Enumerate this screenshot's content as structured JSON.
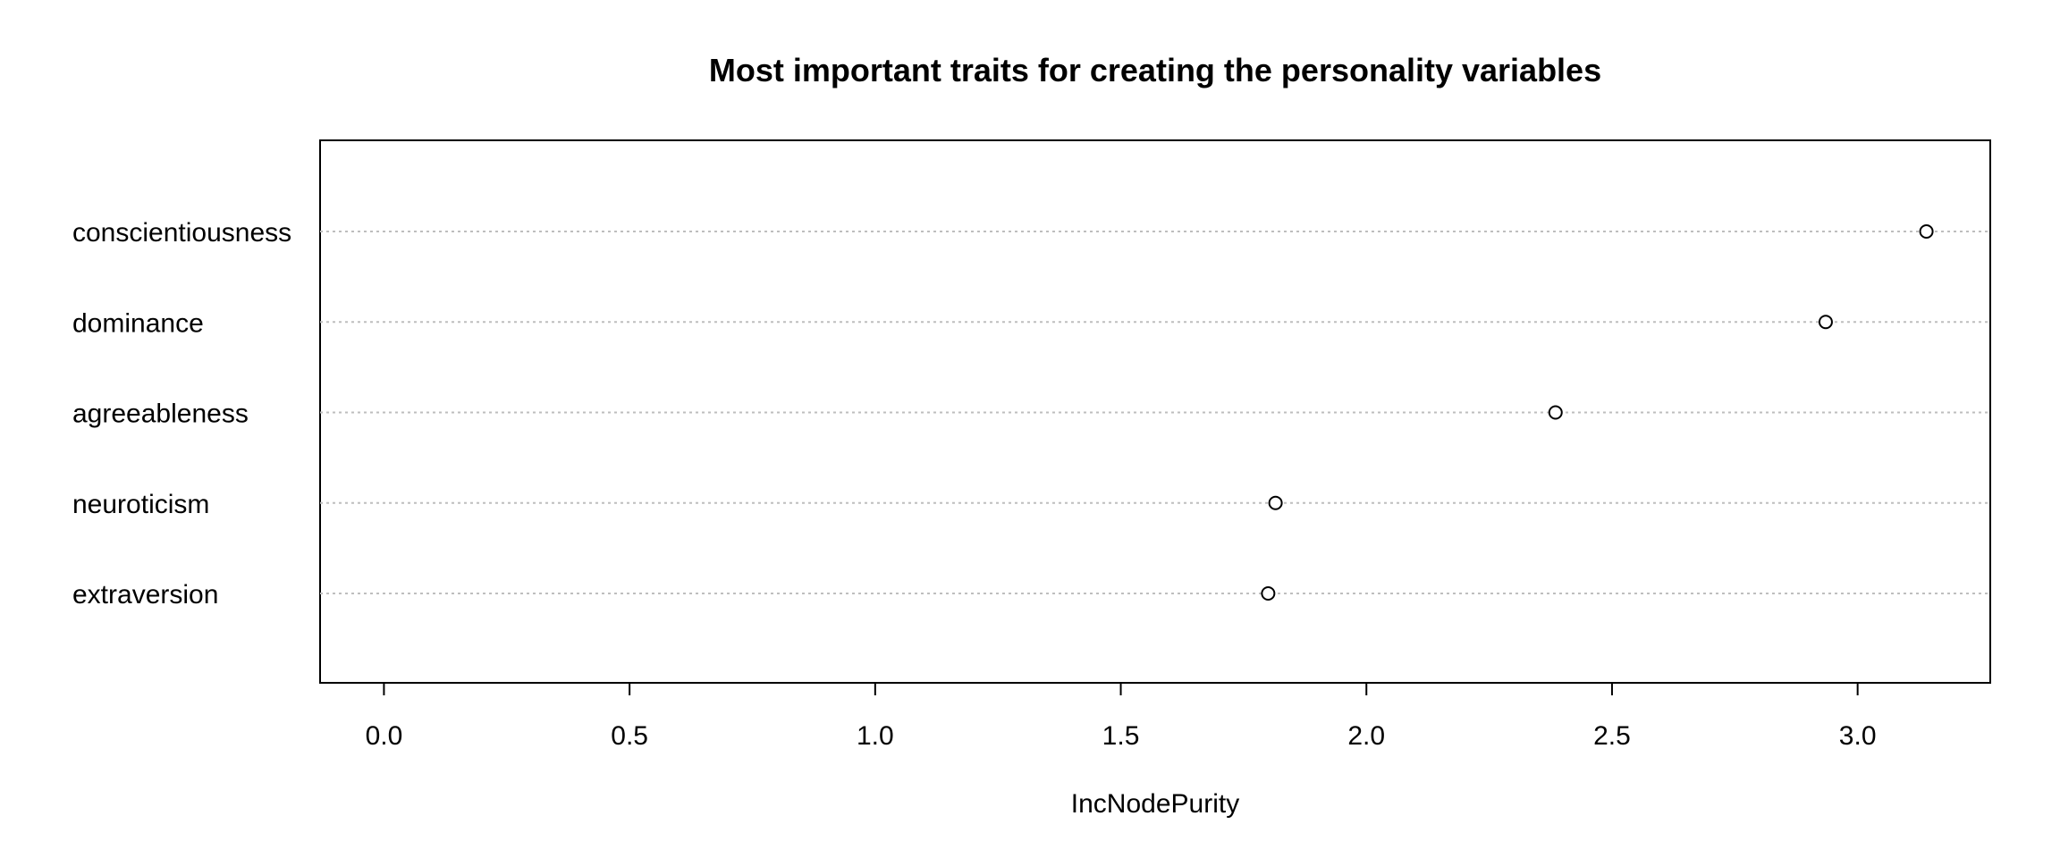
{
  "chart_data": {
    "type": "scatter",
    "title": "Most important traits for creating the personality variables",
    "xlabel": "IncNodePurity",
    "ylabel": "",
    "categories": [
      "conscientiousness",
      "dominance",
      "agreeableness",
      "neuroticism",
      "extraversion"
    ],
    "values": [
      3.14,
      2.935,
      2.385,
      1.815,
      1.8
    ],
    "xlim": [
      -0.13,
      3.27
    ],
    "xticks": [
      "0.0",
      "0.5",
      "1.0",
      "1.5",
      "2.0",
      "2.5",
      "3.0"
    ],
    "grid": true,
    "marker": "open-circle",
    "colors": {
      "marker": "#000000",
      "gridline": "#bebebe",
      "axis": "#000000"
    }
  }
}
